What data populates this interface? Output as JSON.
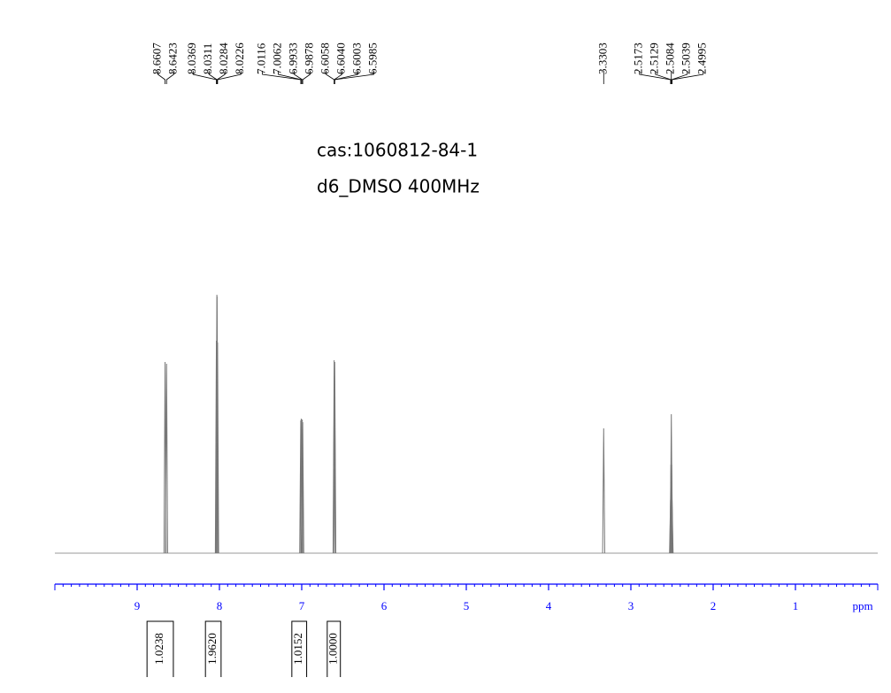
{
  "chart_data": {
    "type": "spectrum",
    "title": "cas:1060812-84-1",
    "subtitle": "d6_DMSO 400MHz",
    "xlabel": "ppm",
    "xlim": [
      10,
      0
    ],
    "xticks": [
      9,
      8,
      7,
      6,
      5,
      4,
      3,
      2,
      1
    ],
    "ylim": [
      0,
      300
    ],
    "color": "#777777",
    "axis_color": "#0000ff",
    "x": [
      8.6607,
      8.6423,
      8.0369,
      8.0311,
      8.0284,
      8.0226,
      7.0116,
      7.0062,
      6.9933,
      6.9878,
      6.6058,
      6.604,
      6.6003,
      6.5985,
      3.3303,
      2.5173,
      2.5129,
      2.5084,
      2.5039,
      2.4995
    ],
    "x_labels": [
      "8.6607",
      "8.6423",
      "8.0369",
      "8.0311",
      "8.0284",
      "8.0226",
      "7.0116",
      "7.0062",
      "6.9933",
      "6.9878",
      "6.6058",
      "6.6040",
      "6.6003",
      "6.5985",
      "3.3303",
      "2.5173",
      "2.5129",
      "2.5084",
      "2.5039",
      "2.4995"
    ],
    "values": [
      216,
      214,
      240,
      292,
      290,
      238,
      150,
      152,
      151,
      148,
      218,
      200,
      195,
      216,
      141,
      60,
      100,
      157,
      100,
      60
    ],
    "integrals": {
      "ranges": [
        [
          8.88,
          8.56
        ],
        [
          8.17,
          7.98
        ],
        [
          7.12,
          6.94
        ],
        [
          6.69,
          6.53
        ]
      ],
      "values": [
        1.0238,
        1.962,
        1.0152,
        1
      ],
      "value_labels": [
        "1.0238",
        "1.9620",
        "1.0152",
        "1.0000"
      ]
    }
  }
}
